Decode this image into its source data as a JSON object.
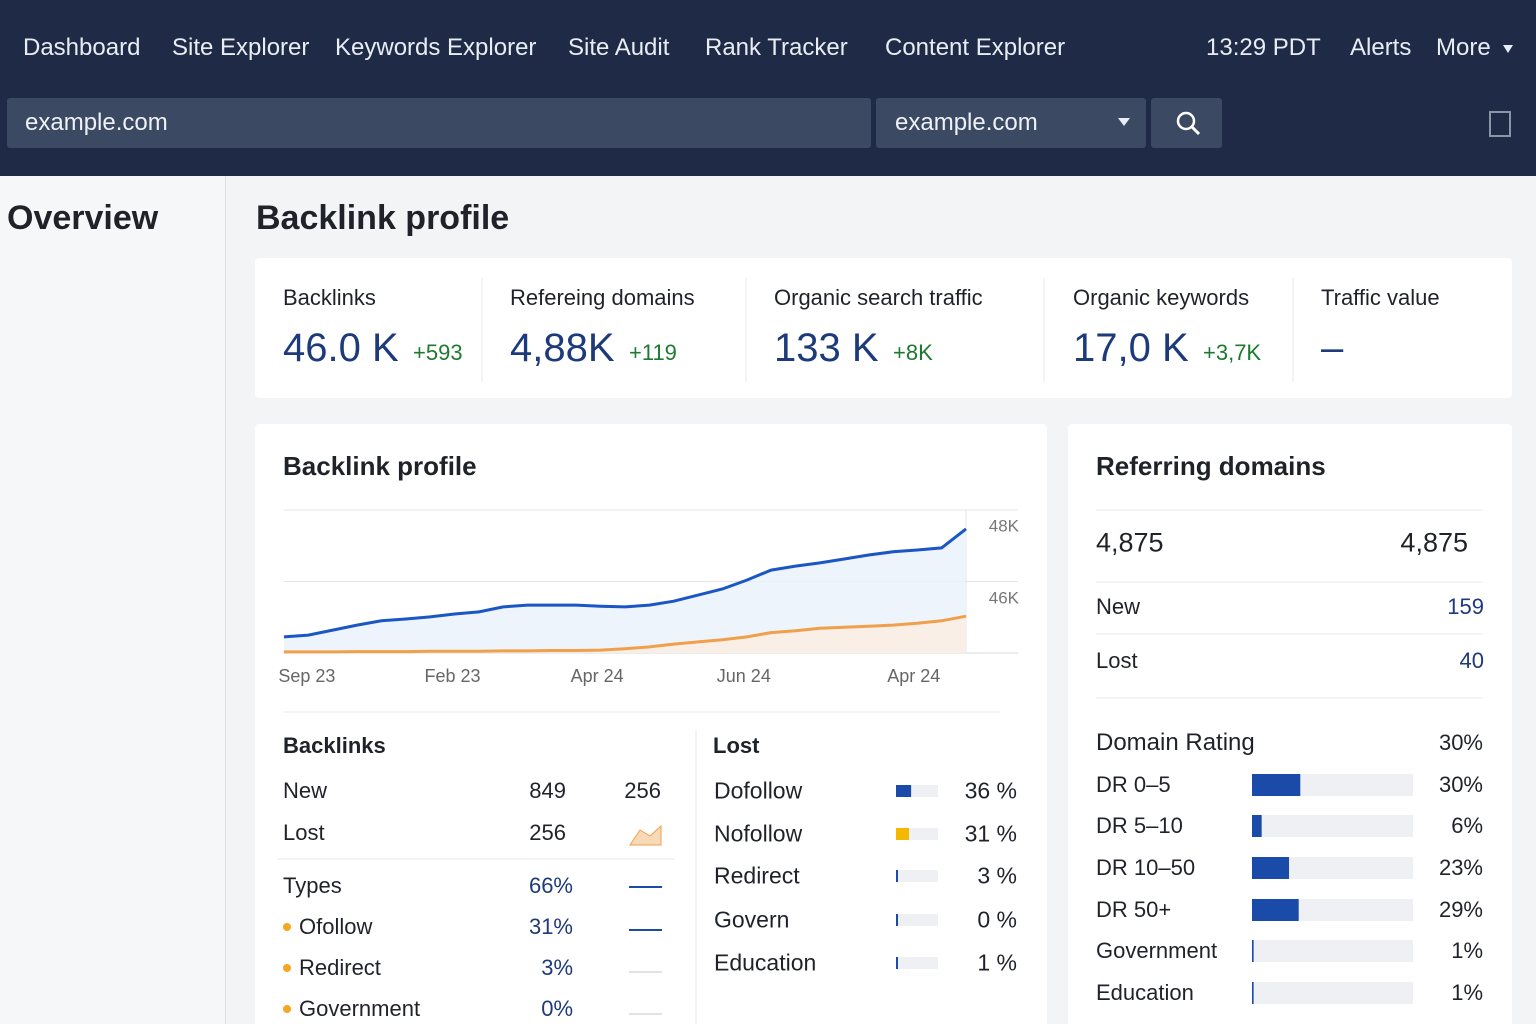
{
  "nav": {
    "items": [
      "Dashboard",
      "Site Explorer",
      "Keywords Explorer",
      "Site Audit",
      "Rank Tracker",
      "Content Explorer"
    ],
    "time": "13:29 PDT",
    "alerts": "Alerts",
    "more": "More"
  },
  "search": {
    "query": "example.com",
    "scope": "example.com"
  },
  "sidebar": {
    "title": "Overview"
  },
  "page_title": "Backlink profile",
  "metrics": [
    {
      "label": "Backlinks",
      "value": "46.0 K",
      "delta": "+593"
    },
    {
      "label": "Refereing domains",
      "value": "4,88K",
      "delta": "+119"
    },
    {
      "label": "Organic search traffic",
      "value": "133 K",
      "delta": "+8K"
    },
    {
      "label": "Organic keywords",
      "value": "17,0 K",
      "delta": "+3,7K"
    },
    {
      "label": "Traffic value",
      "value": "–"
    }
  ],
  "chart_data": {
    "type": "line",
    "title": "Backlink profile",
    "categories": [
      null,
      "Sep 23",
      null,
      null,
      null,
      null,
      null,
      "Feb 23",
      null,
      null,
      null,
      null,
      null,
      "Apr 24",
      null,
      null,
      null,
      null,
      null,
      "Jun 24",
      null,
      null,
      null,
      null,
      null,
      null,
      "Apr 24",
      null,
      null
    ],
    "series": [
      {
        "color": "#1a56c4",
        "values": [
          44450,
          44500,
          44640,
          44780,
          44900,
          44950,
          45010,
          45090,
          45150,
          45290,
          45340,
          45340,
          45340,
          45310,
          45290,
          45340,
          45450,
          45620,
          45790,
          46040,
          46320,
          46430,
          46520,
          46630,
          46740,
          46830,
          46880,
          46940,
          47470
        ]
      },
      {
        "color": "#f0a04b",
        "values": [
          44030,
          44030,
          44030,
          44040,
          44040,
          44040,
          44050,
          44050,
          44050,
          44060,
          44060,
          44070,
          44070,
          44080,
          44120,
          44170,
          44250,
          44310,
          44370,
          44450,
          44570,
          44620,
          44690,
          44720,
          44750,
          44780,
          44830,
          44900,
          45030
        ]
      }
    ],
    "ylim": [
      44000,
      48000
    ],
    "yticks": [
      {
        "value": 48000,
        "label": "48K"
      },
      {
        "value": 46000,
        "label": "46K"
      }
    ],
    "grid": true
  },
  "backlinks": {
    "title": "Backlinks",
    "rows": [
      [
        "New",
        "849",
        "256"
      ],
      [
        "Lost",
        "256"
      ]
    ],
    "types": [
      [
        "Types",
        "66%"
      ],
      [
        "Ofollow",
        "31%"
      ],
      [
        "Redirect",
        "3%"
      ],
      [
        "Government",
        "0%"
      ]
    ]
  },
  "lost": {
    "title": "Lost",
    "categories": [
      "Dofollow",
      "Nofollow",
      "Redirect",
      "Govern",
      "Education"
    ],
    "values": [
      36,
      31,
      3,
      0,
      1
    ],
    "value_labels": [
      "36 %",
      "31 %",
      "3 %",
      "0 %",
      "1 %"
    ],
    "colors": [
      "#1a4ba8",
      "#f5b800",
      "#1a4ba8",
      "#1a4ba8",
      "#1a4ba8"
    ]
  },
  "referring": {
    "title": "Referring domains",
    "total": [
      "4,875",
      "4,875"
    ],
    "rows": [
      [
        "New",
        "159"
      ],
      [
        "Lost",
        "40"
      ]
    ],
    "rating": {
      "title": "Domain Rating",
      "value": "30%",
      "categories": [
        "DR 0–5",
        "DR 5–10",
        "DR 10–50",
        "DR 50+",
        "Government",
        "Education"
      ],
      "values": [
        30,
        6,
        23,
        29,
        1,
        1
      ],
      "value_labels": [
        "30%",
        "6%",
        "23%",
        "29%",
        "1%",
        "1%"
      ],
      "color": "#1a4ba8"
    }
  }
}
